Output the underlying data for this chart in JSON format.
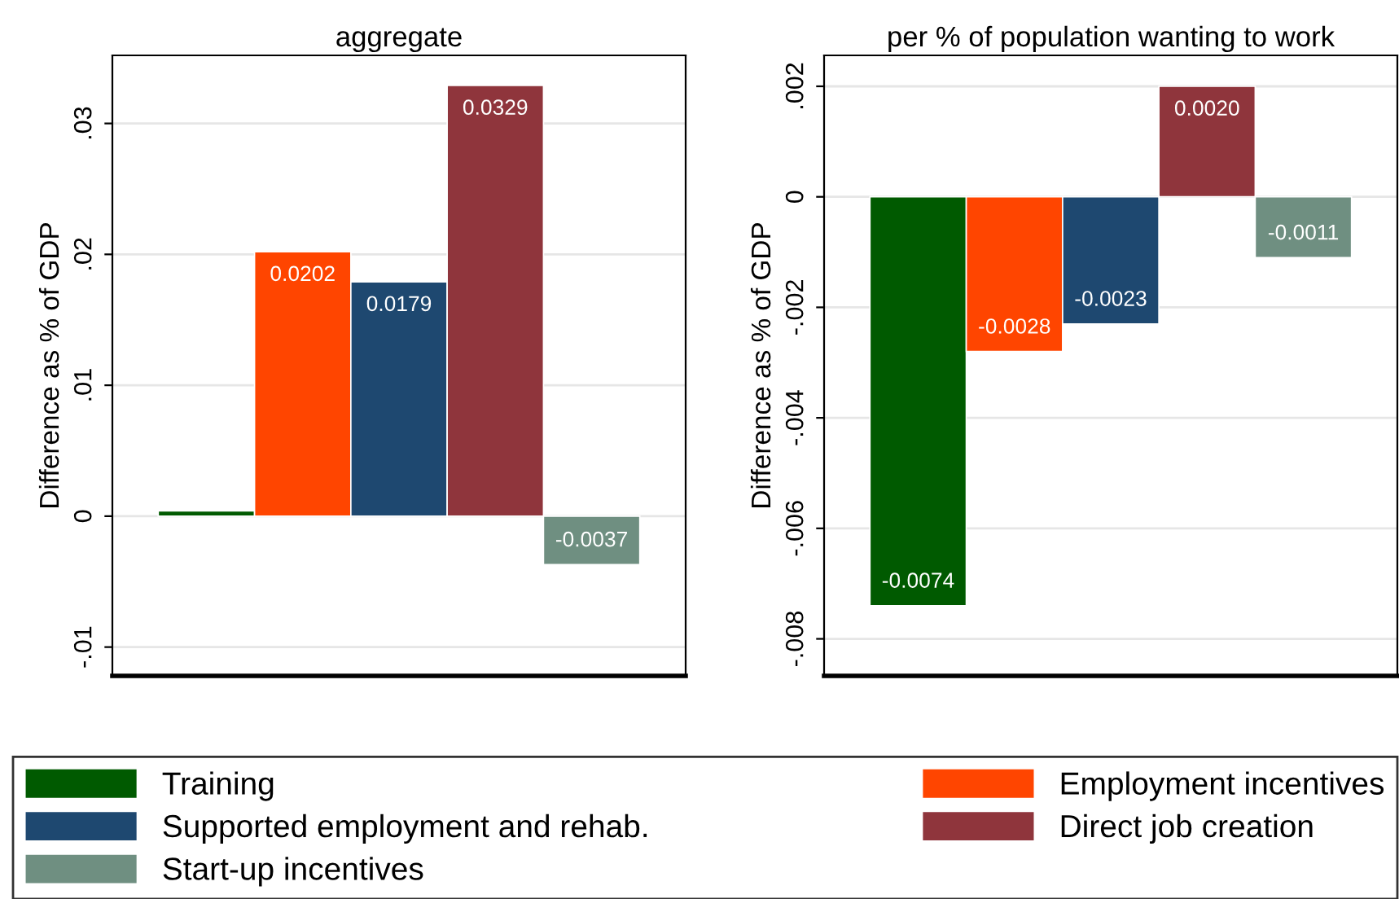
{
  "chart_data": [
    {
      "type": "bar",
      "title": "aggregate",
      "ylabel": "Difference as % of GDP",
      "categories": [
        null
      ],
      "series": [
        {
          "name": "Training",
          "color": "#005a00",
          "values": [
            0.0004
          ],
          "value_labels": [
            null
          ]
        },
        {
          "name": "Employment incentives",
          "color": "#ff4500",
          "values": [
            0.0202
          ],
          "value_labels": [
            "0.0202"
          ]
        },
        {
          "name": "Supported employment and rehab.",
          "color": "#1e4870",
          "values": [
            0.0179
          ],
          "value_labels": [
            "0.0179"
          ]
        },
        {
          "name": "Direct job creation",
          "color": "#8f353c",
          "values": [
            0.0329
          ],
          "value_labels": [
            "0.0329"
          ]
        },
        {
          "name": "Start-up incentives",
          "color": "#6f8f81",
          "values": [
            -0.0037
          ],
          "value_labels": [
            "-0.0037"
          ]
        }
      ],
      "ylim": [
        -0.0122,
        0.0352
      ],
      "yticks": [
        {
          "value": -0.01,
          "label": "-.01"
        },
        0,
        {
          "value": 0.01,
          "label": ".01"
        },
        {
          "value": 0.02,
          "label": ".02"
        },
        {
          "value": 0.03,
          "label": ".03"
        }
      ],
      "grid": "y",
      "legend": "bottom"
    },
    {
      "type": "bar",
      "title": "per % of population wanting to work",
      "ylabel": "Difference as % of GDP",
      "categories": [
        null
      ],
      "series": [
        {
          "name": "Training",
          "color": "#005a00",
          "values": [
            -0.0074
          ],
          "value_labels": [
            "-0.0074"
          ]
        },
        {
          "name": "Employment incentives",
          "color": "#ff4500",
          "values": [
            -0.0028
          ],
          "value_labels": [
            "-0.0028"
          ]
        },
        {
          "name": "Supported employment and rehab.",
          "color": "#1e4870",
          "values": [
            -0.0023
          ],
          "value_labels": [
            "-0.0023"
          ]
        },
        {
          "name": "Direct job creation",
          "color": "#8f353c",
          "values": [
            0.002
          ],
          "value_labels": [
            "0.0020"
          ]
        },
        {
          "name": "Start-up incentives",
          "color": "#6f8f81",
          "values": [
            -0.0011
          ],
          "value_labels": [
            "-0.0011"
          ]
        }
      ],
      "ylim": [
        -0.00867,
        0.00256
      ],
      "yticks": [
        {
          "value": -0.008,
          "label": "-.008"
        },
        {
          "value": -0.006,
          "label": "-.006"
        },
        {
          "value": -0.004,
          "label": "-.004"
        },
        {
          "value": -0.002,
          "label": "-.002"
        },
        0,
        {
          "value": 0.002,
          "label": ".002"
        }
      ],
      "grid": "y",
      "legend": "bottom"
    }
  ]
}
